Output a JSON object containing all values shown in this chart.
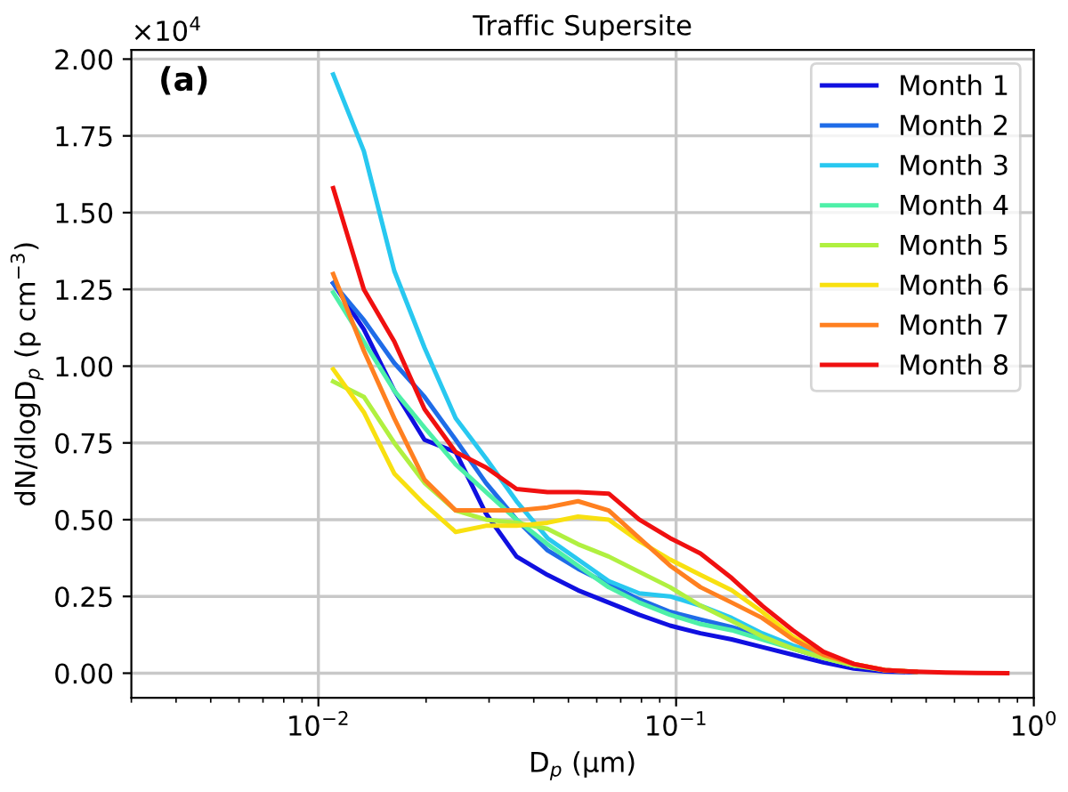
{
  "chart_data": {
    "type": "line",
    "title": "Traffic Supersite",
    "xlabel": "D$_{p}$ (μm)",
    "ylabel": "dN/dlogD$_{p}$ (p cm$^{−3}$)",
    "annotations": [
      "(a)",
      "×10$^{4}$"
    ],
    "x": [
      0.011,
      0.0134,
      0.0163,
      0.0198,
      0.0242,
      0.0294,
      0.0358,
      0.0437,
      0.0532,
      0.0648,
      0.0789,
      0.0962,
      0.117,
      0.143,
      0.174,
      0.212,
      0.258,
      0.314,
      0.383,
      0.467,
      0.568,
      0.692,
      0.843
    ],
    "series": [
      {
        "name": "Month 1",
        "color": "#1010e0",
        "values": [
          1.27,
          1.12,
          0.92,
          0.76,
          0.72,
          0.52,
          0.38,
          0.32,
          0.27,
          0.23,
          0.19,
          0.155,
          0.13,
          0.11,
          0.085,
          0.06,
          0.035,
          0.015,
          0.006,
          0.003,
          null,
          null,
          null
        ]
      },
      {
        "name": "Month 2",
        "color": "#1f6ce8",
        "values": [
          1.27,
          1.15,
          1.01,
          0.9,
          0.76,
          0.62,
          0.5,
          0.4,
          0.34,
          0.29,
          0.24,
          0.2,
          0.175,
          0.15,
          0.12,
          0.08,
          0.05,
          0.025,
          0.01,
          0.004,
          null,
          null,
          null
        ]
      },
      {
        "name": "Month 3",
        "color": "#28c8f0",
        "values": [
          1.95,
          1.7,
          1.31,
          1.06,
          0.83,
          0.7,
          0.56,
          0.44,
          0.37,
          0.3,
          0.26,
          0.25,
          0.22,
          0.18,
          0.13,
          0.09,
          0.06,
          0.03,
          null,
          null,
          null,
          null,
          null
        ]
      },
      {
        "name": "Month 4",
        "color": "#4ef0a8",
        "values": [
          1.24,
          1.08,
          0.92,
          0.8,
          0.68,
          0.59,
          0.5,
          0.42,
          0.35,
          0.28,
          0.23,
          0.19,
          0.16,
          0.14,
          0.11,
          0.08,
          0.05,
          0.025,
          null,
          null,
          null,
          null,
          null
        ]
      },
      {
        "name": "Month 5",
        "color": "#b0f040",
        "values": [
          0.95,
          0.9,
          0.75,
          0.62,
          0.53,
          0.5,
          0.49,
          0.47,
          0.42,
          0.38,
          0.33,
          0.28,
          0.22,
          0.17,
          0.12,
          0.08,
          0.05,
          0.025,
          0.01,
          null,
          null,
          null,
          null
        ]
      },
      {
        "name": "Month 6",
        "color": "#f8e010",
        "values": [
          0.99,
          0.85,
          0.65,
          0.55,
          0.46,
          0.48,
          0.48,
          0.49,
          0.51,
          0.5,
          0.43,
          0.37,
          0.32,
          0.27,
          0.2,
          0.12,
          0.06,
          0.03,
          0.01,
          0.005,
          null,
          null,
          null
        ]
      },
      {
        "name": "Month 7",
        "color": "#ff8020",
        "values": [
          1.3,
          1.05,
          0.83,
          0.63,
          0.53,
          0.53,
          0.53,
          0.54,
          0.56,
          0.53,
          0.44,
          0.35,
          0.28,
          0.23,
          0.18,
          0.11,
          0.06,
          0.03,
          0.01,
          0.005,
          null,
          null,
          null
        ]
      },
      {
        "name": "Month 8",
        "color": "#f01010",
        "values": [
          1.58,
          1.25,
          1.08,
          0.86,
          0.72,
          0.67,
          0.6,
          0.59,
          0.59,
          0.585,
          0.5,
          0.44,
          0.39,
          0.31,
          0.22,
          0.14,
          0.07,
          0.03,
          0.01,
          0.005,
          0.002,
          0.001,
          0
        ]
      }
    ],
    "log": "x",
    "xlim": [
      0.003,
      1
    ],
    "xticks": [
      {
        "value": 0.01,
        "label": "10$^{−2}$"
      },
      {
        "value": 0.1,
        "label": "10$^{−1}$"
      },
      {
        "value": 1,
        "label": "10$^{0}$"
      }
    ],
    "ylim": [
      -0.08,
      2.03
    ],
    "yticks": [
      {
        "value": 0,
        "label": "0.00"
      },
      {
        "value": 0.25,
        "label": "0.25"
      },
      {
        "value": 0.5,
        "label": "0.50"
      },
      {
        "value": 0.75,
        "label": "0.75"
      },
      {
        "value": 1,
        "label": "1.00"
      },
      {
        "value": 1.25,
        "label": "1.25"
      },
      {
        "value": 1.5,
        "label": "1.50"
      },
      {
        "value": 1.75,
        "label": "1.75"
      },
      {
        "value": 2,
        "label": "2.00"
      }
    ],
    "grid": true,
    "legend": "top right",
    "marker": "none",
    "line_style": "solid"
  }
}
